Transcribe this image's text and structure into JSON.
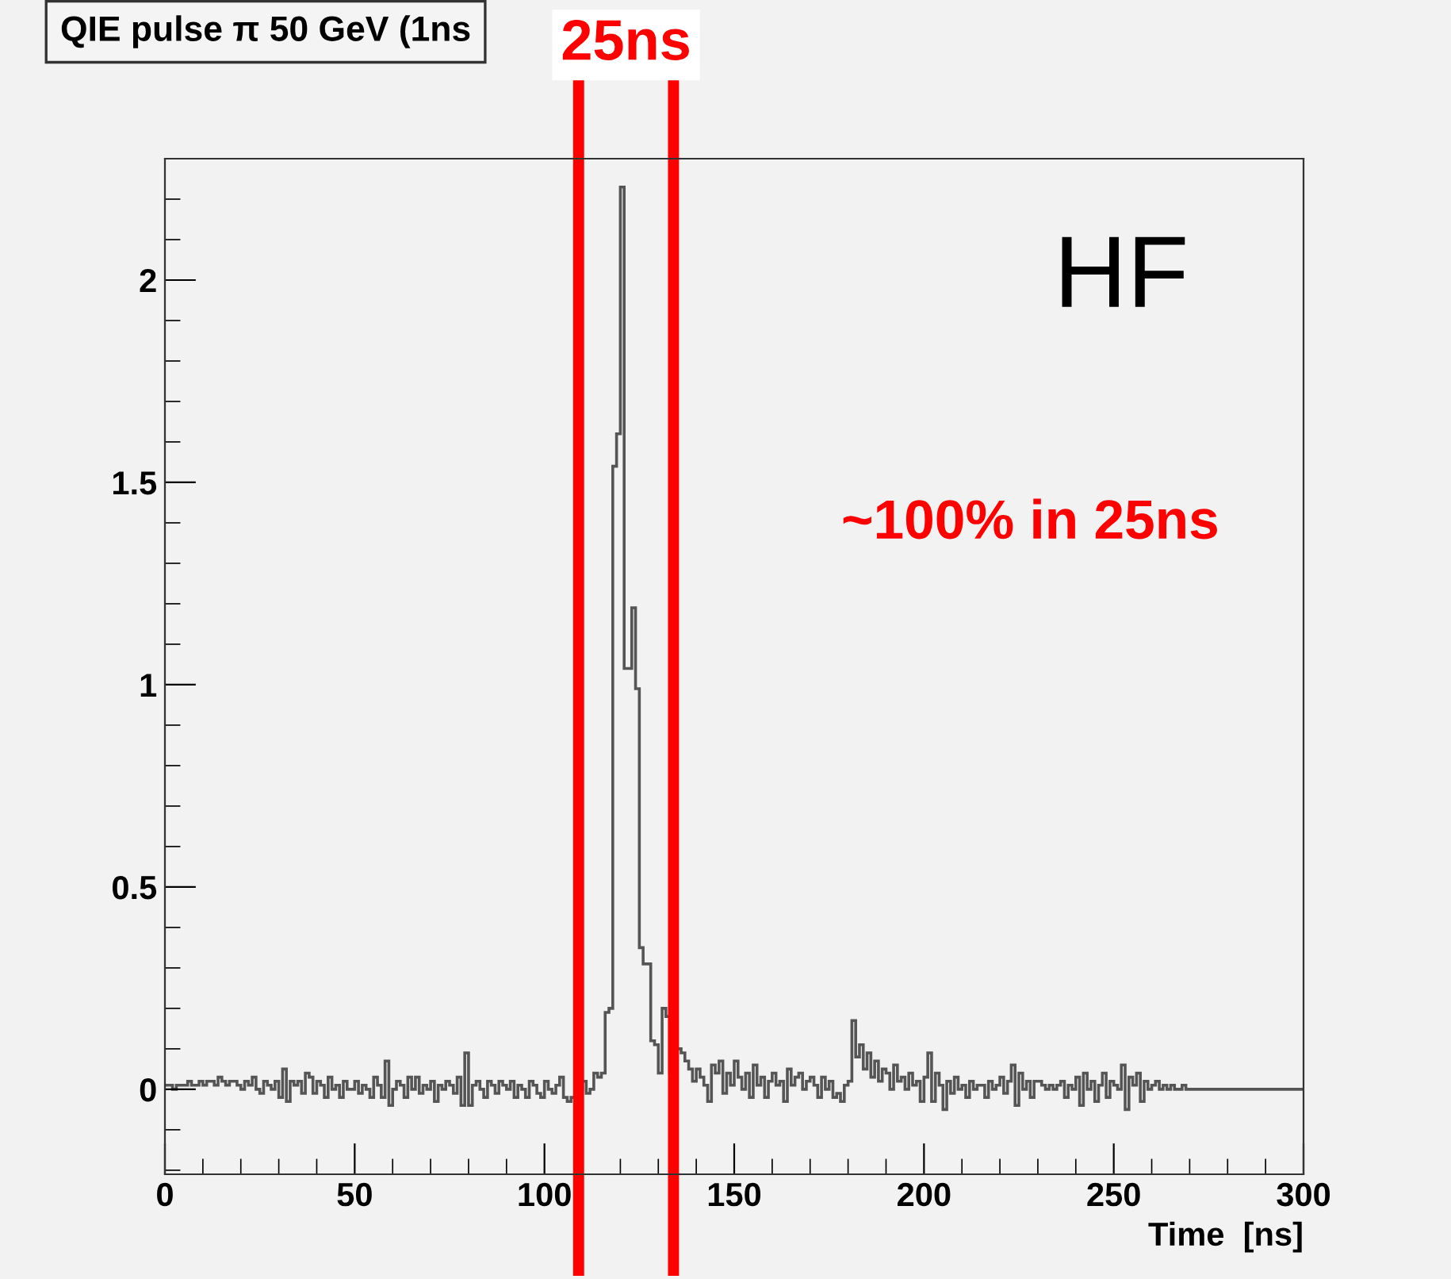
{
  "chart_data": {
    "type": "histogram",
    "title": "QIE pulse π 50 GeV (1ns",
    "xlabel": "Time  [ns]",
    "bins": [
      0,
      1,
      2,
      3,
      4,
      5,
      6,
      7,
      8,
      9,
      10,
      11,
      12,
      13,
      14,
      15,
      16,
      17,
      18,
      19,
      20,
      21,
      22,
      23,
      24,
      25,
      26,
      27,
      28,
      29,
      30,
      31,
      32,
      33,
      34,
      35,
      36,
      37,
      38,
      39,
      40,
      41,
      42,
      43,
      44,
      45,
      46,
      47,
      48,
      49,
      50,
      51,
      52,
      53,
      54,
      55,
      56,
      57,
      58,
      59,
      60,
      61,
      62,
      63,
      64,
      65,
      66,
      67,
      68,
      69,
      70,
      71,
      72,
      73,
      74,
      75,
      76,
      77,
      78,
      79,
      80,
      81,
      82,
      83,
      84,
      85,
      86,
      87,
      88,
      89,
      90,
      91,
      92,
      93,
      94,
      95,
      96,
      97,
      98,
      99,
      100,
      101,
      102,
      103,
      104,
      105,
      106,
      107,
      108,
      109,
      110,
      111,
      112,
      113,
      114,
      115,
      116,
      117,
      118,
      119,
      120,
      121,
      122,
      123,
      124,
      125,
      126,
      127,
      128,
      129,
      130,
      131,
      132,
      133,
      134,
      135,
      136,
      137,
      138,
      139,
      140,
      141,
      142,
      143,
      144,
      145,
      146,
      147,
      148,
      149,
      150,
      151,
      152,
      153,
      154,
      155,
      156,
      157,
      158,
      159,
      160,
      161,
      162,
      163,
      164,
      165,
      166,
      167,
      168,
      169,
      170,
      171,
      172,
      173,
      174,
      175,
      176,
      177,
      178,
      179,
      180,
      181,
      182,
      183,
      184,
      185,
      186,
      187,
      188,
      189,
      190,
      191,
      192,
      193,
      194,
      195,
      196,
      197,
      198,
      199,
      200,
      201,
      202,
      203,
      204,
      205,
      206,
      207,
      208,
      209,
      210,
      211,
      212,
      213,
      214,
      215,
      216,
      217,
      218,
      219,
      220,
      221,
      222,
      223,
      224,
      225,
      226,
      227,
      228,
      229,
      230,
      231,
      232,
      233,
      234,
      235,
      236,
      237,
      238,
      239,
      240,
      241,
      242,
      243,
      244,
      245,
      246,
      247,
      248,
      249,
      250,
      251,
      252,
      253,
      254,
      255,
      256,
      257,
      258,
      259,
      260,
      261,
      262,
      263,
      264,
      265,
      266,
      267,
      268,
      269,
      270,
      271,
      272,
      273,
      274,
      275,
      276,
      277,
      278,
      279,
      280,
      281,
      282,
      283,
      284,
      285,
      286,
      287,
      288,
      289,
      290,
      291,
      292,
      293,
      294,
      295,
      296,
      297,
      298,
      299,
      300
    ],
    "values": [
      0.01,
      0.01,
      0.0,
      0.01,
      0.01,
      0.01,
      0.02,
      0.01,
      0.01,
      0.02,
      0.01,
      0.02,
      0.02,
      0.01,
      0.03,
      0.02,
      0.01,
      0.02,
      0.02,
      0.01,
      0.0,
      0.02,
      0.01,
      0.03,
      0.0,
      -0.01,
      0.02,
      0.01,
      0.0,
      0.02,
      -0.02,
      0.05,
      -0.03,
      0.02,
      0.01,
      0.02,
      -0.01,
      0.04,
      0.03,
      -0.01,
      0.02,
      0.01,
      -0.02,
      0.03,
      0.0,
      0.01,
      -0.02,
      0.02,
      0.0,
      0.0,
      0.02,
      -0.01,
      0.01,
      0.0,
      -0.02,
      0.03,
      0.01,
      -0.02,
      0.07,
      -0.04,
      0.0,
      0.02,
      0.01,
      -0.02,
      0.03,
      0.0,
      0.03,
      -0.01,
      0.01,
      0.0,
      0.02,
      -0.03,
      0.01,
      0.0,
      0.02,
      0.01,
      -0.01,
      0.03,
      -0.04,
      0.09,
      -0.04,
      0.01,
      0.02,
      0.0,
      -0.02,
      0.02,
      0.01,
      -0.01,
      0.02,
      0.01,
      0.0,
      0.02,
      -0.02,
      0.01,
      0.0,
      -0.02,
      0.02,
      0.01,
      -0.01,
      -0.02,
      0.02,
      0.0,
      -0.01,
      0.01,
      0.03,
      -0.02,
      -0.03,
      -0.02,
      -0.01,
      0.0,
      0.02,
      -0.01,
      0.0,
      0.04,
      0.03,
      0.04,
      0.19,
      0.2,
      1.54,
      1.62,
      2.23,
      1.04,
      1.04,
      1.19,
      0.99,
      0.35,
      0.31,
      0.31,
      0.12,
      0.11,
      0.04,
      0.2,
      0.18,
      0.04,
      0.06,
      0.1,
      0.09,
      0.07,
      0.05,
      0.02,
      0.05,
      0.03,
      0.01,
      -0.03,
      0.06,
      0.04,
      0.07,
      -0.01,
      0.04,
      0.01,
      0.07,
      0.03,
      0.0,
      0.04,
      -0.02,
      0.06,
      0.01,
      0.03,
      -0.02,
      0.02,
      0.04,
      0.01,
      0.02,
      -0.03,
      0.05,
      0.01,
      0.03,
      0.04,
      0.0,
      0.02,
      0.03,
      0.01,
      -0.02,
      0.03,
      0.0,
      0.02,
      -0.02,
      -0.01,
      -0.03,
      0.01,
      0.02,
      0.17,
      0.08,
      0.11,
      0.05,
      0.09,
      0.03,
      0.07,
      0.02,
      0.05,
      0.04,
      0.0,
      0.06,
      0.02,
      0.03,
      0.0,
      0.04,
      0.01,
      0.02,
      -0.03,
      0.03,
      0.09,
      -0.03,
      0.04,
      0.01,
      -0.05,
      0.02,
      -0.01,
      0.03,
      0.0,
      0.01,
      -0.02,
      0.02,
      0.0,
      0.01,
      0.01,
      -0.02,
      0.02,
      0.0,
      0.01,
      0.03,
      -0.01,
      0.02,
      0.06,
      -0.04,
      0.04,
      0.0,
      0.02,
      -0.02,
      0.02,
      0.02,
      0.01,
      0.0,
      0.01,
      0.0,
      0.01,
      0.02,
      -0.02,
      0.01,
      0.0,
      0.03,
      -0.04,
      0.04,
      0.0,
      0.02,
      -0.03,
      0.01,
      0.04,
      -0.02,
      0.02,
      0.01,
      0.0,
      0.06,
      -0.05,
      0.03,
      0.01,
      0.04,
      -0.03,
      0.02,
      0.0,
      0.01,
      0.02,
      0.0,
      0.01,
      0.0,
      0.01,
      0.0,
      0.0,
      0.01,
      0.0,
      0.0,
      0.0,
      0.0,
      0.0,
      0.0,
      0.0,
      0.0,
      0.0,
      0.0,
      0.0,
      0.0,
      0.0,
      0.0,
      0.0,
      0.0,
      0.0,
      0.0,
      0.0,
      0.0,
      0.0,
      0.0,
      0.0,
      0.0,
      0.0,
      0.0,
      0.0,
      0.0,
      0.0,
      0.0,
      0.0
    ],
    "color": "#555555",
    "xlim": [
      0,
      300
    ],
    "xticks": [
      0,
      50,
      100,
      150,
      200,
      250,
      300
    ],
    "ylim": [
      -0.21,
      2.3
    ],
    "yticks": [
      0,
      0.5,
      1,
      1.5,
      2
    ],
    "ref_lines": [
      {
        "axis": "x",
        "value": 109,
        "label": "25ns",
        "color": "#ff0000"
      },
      {
        "axis": "x",
        "value": 134,
        "color": "#ff0000"
      }
    ],
    "annotations": [
      "HF",
      "~100% in 25ns"
    ],
    "grid": false,
    "legend": false
  }
}
